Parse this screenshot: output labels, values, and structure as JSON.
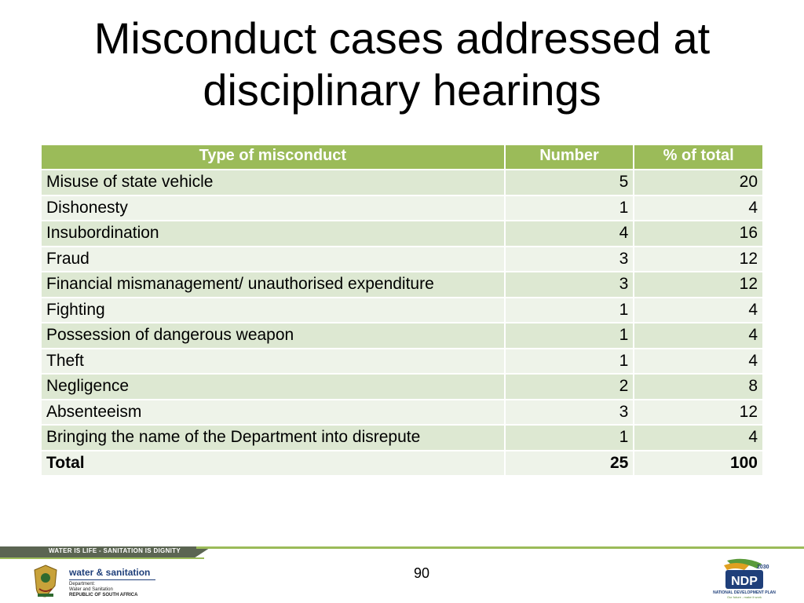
{
  "title": "Misconduct cases addressed at disciplinary hearings",
  "table": {
    "headers": [
      "Type of misconduct",
      "Number",
      "% of total"
    ],
    "rows": [
      {
        "type": "Misuse of state vehicle",
        "number": "5",
        "percent": "20"
      },
      {
        "type": "Dishonesty",
        "number": "1",
        "percent": "4"
      },
      {
        "type": "Insubordination",
        "number": "4",
        "percent": "16"
      },
      {
        "type": "Fraud",
        "number": "3",
        "percent": "12"
      },
      {
        "type": "Financial mismanagement/ unauthorised expenditure",
        "number": "3",
        "percent": "12"
      },
      {
        "type": "Fighting",
        "number": "1",
        "percent": "4"
      },
      {
        "type": "Possession of dangerous weapon",
        "number": "1",
        "percent": "4"
      },
      {
        "type": "Theft",
        "number": "1",
        "percent": "4"
      },
      {
        "type": "Negligence",
        "number": "2",
        "percent": "8"
      },
      {
        "type": "Absenteeism",
        "number": "3",
        "percent": "12"
      },
      {
        "type": "Bringing the name of the Department into disrepute",
        "number": "1",
        "percent": "4"
      }
    ],
    "total": {
      "label": "Total",
      "number": "25",
      "percent": "100"
    }
  },
  "footer": {
    "banner": "WATER IS LIFE - SANITATION IS DIGNITY",
    "page_number": "90",
    "department": {
      "name": "water & sanitation",
      "line1": "Department:",
      "line2": "Water and Sanitation",
      "line3": "REPUBLIC OF SOUTH AFRICA"
    },
    "ndp": {
      "year": "2030",
      "mark": "NDP",
      "caption": "NATIONAL DEVELOPMENT PLAN",
      "tagline": "Our future - make it work"
    }
  },
  "colors": {
    "header_green": "#9bbb59",
    "row_dark": "#dde8d2",
    "row_light": "#eef3e9",
    "navy": "#1f3f7a"
  }
}
